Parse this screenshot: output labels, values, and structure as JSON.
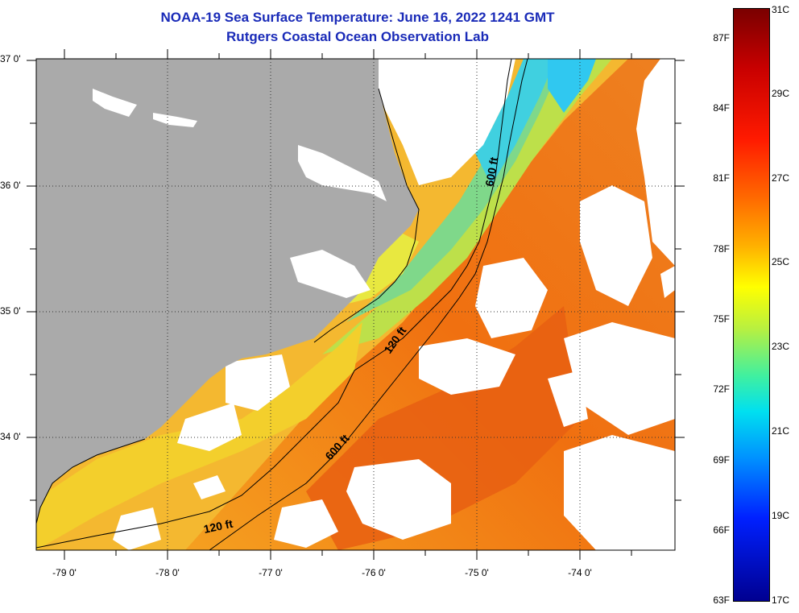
{
  "title": "NOAA-19 Sea Surface Temperature:  June 16, 2022 1241 GMT",
  "subtitle": "Rutgers Coastal Ocean Observation Lab",
  "latitude_labels": [
    "37 0'",
    "36 0'",
    "35 0'",
    "34 0'"
  ],
  "longitude_labels": [
    "-79 0'",
    "-78 0'",
    "-77 0'",
    "-76 0'",
    "-75 0'",
    "-74 0'"
  ],
  "contour_labels": [
    "600 ft",
    "120 ft",
    "600 ft",
    "120 ft"
  ],
  "colorbar": {
    "fahrenheit_labels": [
      "87F",
      "84F",
      "81F",
      "78F",
      "75F",
      "72F",
      "69F",
      "66F",
      "63F"
    ],
    "celsius_labels": [
      "31C",
      "29C",
      "27C",
      "25C",
      "23C",
      "21C",
      "19C",
      "17C"
    ],
    "range_f": [
      63,
      88
    ],
    "range_c": [
      17,
      31
    ]
  },
  "colors": {
    "land": "#aaaaaa",
    "cloud": "#ffffff",
    "title": "#1a2bb8",
    "warm": "#f07a1c",
    "cool": "#8fe07a"
  }
}
